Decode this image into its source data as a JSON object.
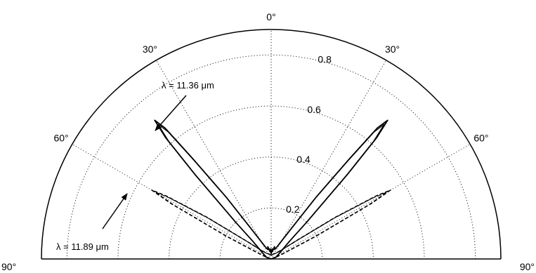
{
  "chart_data": {
    "type": "polar",
    "title": "",
    "angle_unit": "deg",
    "angle_zero": "top",
    "theta_range": [
      -90,
      90
    ],
    "r_max": 0.9,
    "radial_ticks": [
      0.2,
      0.4,
      0.6,
      0.8
    ],
    "radial_tick_labels": [
      "0.2",
      "0.4",
      "0.6",
      "0.8"
    ],
    "angle_ticks": [
      -90,
      -60,
      -30,
      0,
      30,
      60,
      90
    ],
    "angle_tick_labels": [
      "90°",
      "60°",
      "30°",
      "0°",
      "30°",
      "60°",
      "90°"
    ],
    "grid": true,
    "series": [
      {
        "label": "λ = 11.36 μm",
        "style": "solid",
        "color": "#000000",
        "peak_theta": 40,
        "peak_r": 0.71,
        "points": [
          {
            "theta": -90,
            "r": 0.0
          },
          {
            "theta": -70,
            "r": 0.02
          },
          {
            "theta": -60,
            "r": 0.03
          },
          {
            "theta": -55,
            "r": 0.04
          },
          {
            "theta": -50,
            "r": 0.06
          },
          {
            "theta": -46,
            "r": 0.1
          },
          {
            "theta": -44,
            "r": 0.2
          },
          {
            "theta": -42,
            "r": 0.45
          },
          {
            "theta": -41,
            "r": 0.63
          },
          {
            "theta": -40,
            "r": 0.71
          },
          {
            "theta": -39,
            "r": 0.66
          },
          {
            "theta": -38,
            "r": 0.5
          },
          {
            "theta": -36,
            "r": 0.3
          },
          {
            "theta": -34,
            "r": 0.16
          },
          {
            "theta": -30,
            "r": 0.08
          },
          {
            "theta": -25,
            "r": 0.05
          },
          {
            "theta": -20,
            "r": 0.04
          },
          {
            "theta": -15,
            "r": 0.05
          },
          {
            "theta": -10,
            "r": 0.03
          },
          {
            "theta": -5,
            "r": 0.04
          },
          {
            "theta": 0,
            "r": 0.02
          },
          {
            "theta": 5,
            "r": 0.04
          },
          {
            "theta": 10,
            "r": 0.03
          },
          {
            "theta": 15,
            "r": 0.05
          },
          {
            "theta": 20,
            "r": 0.04
          },
          {
            "theta": 25,
            "r": 0.05
          },
          {
            "theta": 30,
            "r": 0.08
          },
          {
            "theta": 34,
            "r": 0.16
          },
          {
            "theta": 36,
            "r": 0.3
          },
          {
            "theta": 38,
            "r": 0.5
          },
          {
            "theta": 39,
            "r": 0.66
          },
          {
            "theta": 40,
            "r": 0.71
          },
          {
            "theta": 41,
            "r": 0.63
          },
          {
            "theta": 42,
            "r": 0.45
          },
          {
            "theta": 44,
            "r": 0.2
          },
          {
            "theta": 46,
            "r": 0.1
          },
          {
            "theta": 50,
            "r": 0.06
          },
          {
            "theta": 55,
            "r": 0.04
          },
          {
            "theta": 60,
            "r": 0.03
          },
          {
            "theta": 70,
            "r": 0.02
          },
          {
            "theta": 90,
            "r": 0.0
          }
        ]
      },
      {
        "label": "λ = 11.89 μm",
        "style": "dashed",
        "color": "#000000",
        "peak_theta": 60,
        "peak_r": 0.54,
        "points": [
          {
            "theta": -90,
            "r": 0.0
          },
          {
            "theta": -70,
            "r": 0.02
          },
          {
            "theta": -66,
            "r": 0.05
          },
          {
            "theta": -63,
            "r": 0.2
          },
          {
            "theta": -61,
            "r": 0.45
          },
          {
            "theta": -60,
            "r": 0.54
          },
          {
            "theta": -59,
            "r": 0.48
          },
          {
            "theta": -57,
            "r": 0.3
          },
          {
            "theta": -54,
            "r": 0.12
          },
          {
            "theta": -50,
            "r": 0.06
          },
          {
            "theta": -40,
            "r": 0.03
          },
          {
            "theta": -20,
            "r": 0.02
          },
          {
            "theta": 0,
            "r": 0.015
          },
          {
            "theta": 20,
            "r": 0.02
          },
          {
            "theta": 40,
            "r": 0.03
          },
          {
            "theta": 50,
            "r": 0.06
          },
          {
            "theta": 54,
            "r": 0.12
          },
          {
            "theta": 57,
            "r": 0.3
          },
          {
            "theta": 59,
            "r": 0.48
          },
          {
            "theta": 60,
            "r": 0.54
          },
          {
            "theta": 61,
            "r": 0.45
          },
          {
            "theta": 63,
            "r": 0.2
          },
          {
            "theta": 66,
            "r": 0.05
          },
          {
            "theta": 70,
            "r": 0.02
          },
          {
            "theta": 90,
            "r": 0.0
          }
        ]
      }
    ],
    "annotations": [
      {
        "text": "λ = 11.36 μm",
        "points_to_series": 0
      },
      {
        "text": "λ = 11.89 μm",
        "points_to_series": 1
      }
    ]
  }
}
